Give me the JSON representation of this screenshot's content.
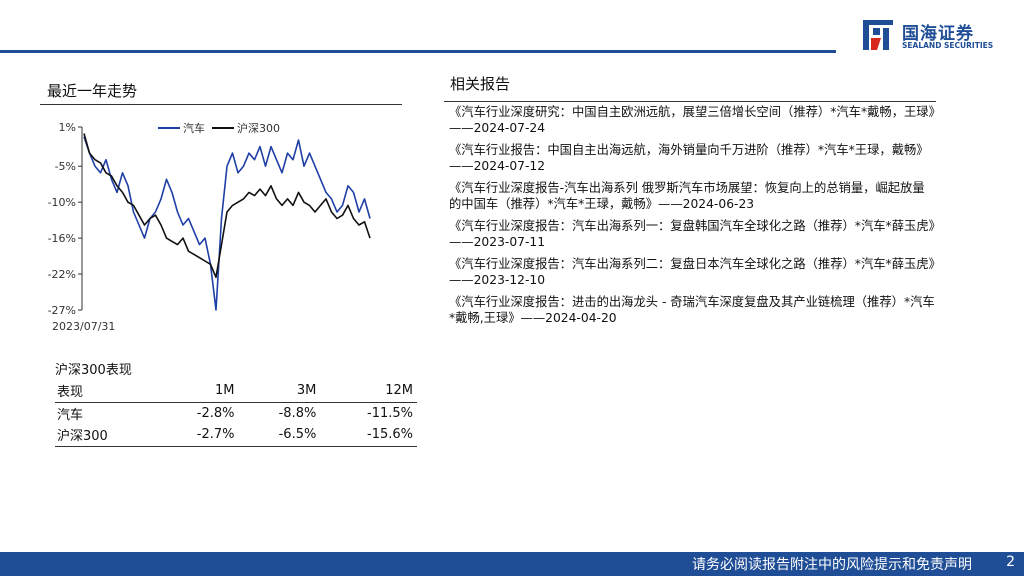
{
  "header": {
    "logo_cn": "国海证券",
    "logo_en": "SEALAND SECURITIES"
  },
  "trend": {
    "title": "最近一年走势"
  },
  "chart_data": {
    "type": "line",
    "yticks": [
      "1%",
      "-5%",
      "-10%",
      "-16%",
      "-22%",
      "-27%"
    ],
    "ytick_values": [
      1,
      -5,
      -10.5,
      -16,
      -21.5,
      -27
    ],
    "ylim": [
      -27,
      1
    ],
    "x_start_label": "2023/07/31",
    "legend": [
      "汽车",
      "沪深300"
    ],
    "legend_position": "top",
    "series": [
      {
        "name": "汽车",
        "color": "#1f3fa6",
        "values": [
          -0.5,
          -3,
          -5,
          -6,
          -4,
          -7,
          -9,
          -6,
          -8,
          -12,
          -14,
          -16,
          -13,
          -12,
          -10,
          -7,
          -9,
          -12,
          -14,
          -13,
          -15,
          -17,
          -16,
          -20,
          -27,
          -13,
          -5,
          -3,
          -6,
          -5,
          -3,
          -4,
          -2,
          -5,
          -2,
          -4,
          -6,
          -3,
          -4,
          -1,
          -5,
          -3,
          -5,
          -7,
          -9,
          -10,
          -12,
          -11,
          -8,
          -9,
          -12,
          -10,
          -13
        ]
      },
      {
        "name": "沪深300",
        "color": "#111111",
        "values": [
          0,
          -3,
          -4,
          -4.5,
          -6,
          -6.5,
          -8,
          -9,
          -10.5,
          -11,
          -12.5,
          -14,
          -13,
          -12.5,
          -14,
          -16,
          -16.5,
          -17,
          -16,
          -18,
          -18.5,
          -19,
          -19.5,
          -20,
          -22,
          -17,
          -12,
          -11,
          -10.5,
          -10,
          -9,
          -9.5,
          -8.5,
          -9.5,
          -8,
          -10,
          -11,
          -10,
          -11,
          -9,
          -10.5,
          -11,
          -12,
          -11,
          -10,
          -12,
          -13,
          -12.5,
          -11,
          -13,
          -14,
          -13.5,
          -16
        ]
      }
    ]
  },
  "performance": {
    "title": "沪深300表现",
    "headers": [
      "表现",
      "1M",
      "3M",
      "12M"
    ],
    "rows": [
      [
        "汽车",
        "-2.8%",
        "-8.8%",
        "-11.5%"
      ],
      [
        "沪深300",
        "-2.7%",
        "-6.5%",
        "-15.6%"
      ]
    ]
  },
  "related": {
    "title": "相关报告",
    "items": [
      "《汽车行业深度研究：中国自主欧洲远航，展望三倍增长空间（推荐）*汽车*戴畅，王琭》——2024-07-24",
      "《汽车行业报告：中国自主出海远航，海外销量向千万进阶（推荐）*汽车*王琭，戴畅》——2024-07-12",
      "《汽车行业深度报告-汽车出海系列 俄罗斯汽车市场展望：恢复向上的总销量，崛起放量的中国车（推荐）*汽车*王琭，戴畅》——2024-06-23",
      "《汽车行业深度报告：汽车出海系列一：复盘韩国汽车全球化之路（推荐）*汽车*薛玉虎》——2023-07-11",
      "《汽车行业深度报告：汽车出海系列二：复盘日本汽车全球化之路（推荐）*汽车*薛玉虎》——2023-12-10",
      "《汽车行业深度报告：进击的出海龙头 - 奇瑞汽车深度复盘及其产业链梳理（推荐）*汽车*戴畅,王琭》——2024-04-20"
    ]
  },
  "footer": {
    "disclaimer": "请务必阅读报告附注中的风险提示和免责声明",
    "page": "2"
  }
}
